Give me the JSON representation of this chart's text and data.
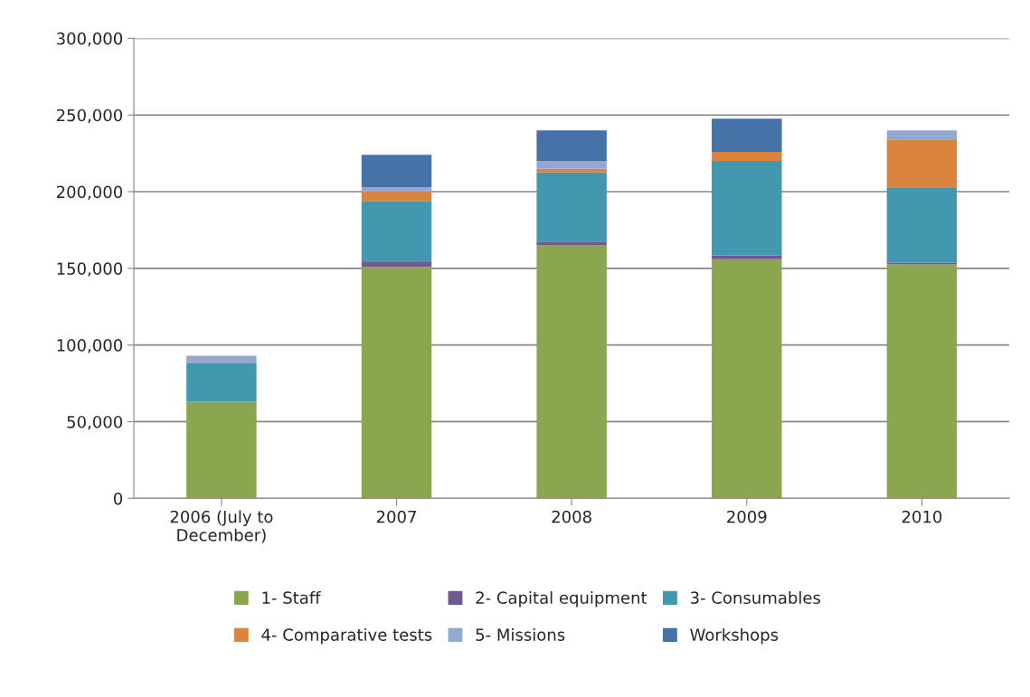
{
  "chart_data": {
    "type": "bar",
    "stacked": true,
    "categories": [
      "2006 (July to\nDecember)",
      "2007",
      "2008",
      "2009",
      "2010"
    ],
    "series": [
      {
        "name": "1- Staff",
        "color": "#8aa64e",
        "values": [
          63000,
          151000,
          165000,
          156000,
          152500
        ]
      },
      {
        "name": "2- Capital equipment",
        "color": "#71588f",
        "values": [
          null,
          3000,
          2500,
          2400,
          1200
        ]
      },
      {
        "name": "3- Consumables",
        "color": "#4298ae",
        "values": [
          25000,
          40000,
          45000,
          61600,
          48600
        ]
      },
      {
        "name": "4- Comparative tests",
        "color": "#db843d",
        "values": [
          null,
          6000,
          2400,
          6000,
          31700
        ]
      },
      {
        "name": "5- Missions",
        "color": "#93a9cf",
        "values": [
          5000,
          3000,
          5000,
          null,
          5900
        ]
      },
      {
        "name": "Workshops",
        "color": "#4572a7",
        "values": [
          null,
          21000,
          20000,
          21600,
          null
        ]
      }
    ],
    "ylim": [
      0,
      300000
    ],
    "yticks": [
      {
        "value": 0,
        "label": "0"
      },
      {
        "value": 50000,
        "label": "50,000"
      },
      {
        "value": 100000,
        "label": "100,000"
      },
      {
        "value": 150000,
        "label": "150,000"
      },
      {
        "value": 200000,
        "label": "200,000"
      },
      {
        "value": 250000,
        "label": "250,000"
      },
      {
        "value": 300000,
        "label": "300,000"
      }
    ],
    "grid": "y",
    "legend": "bottom"
  }
}
